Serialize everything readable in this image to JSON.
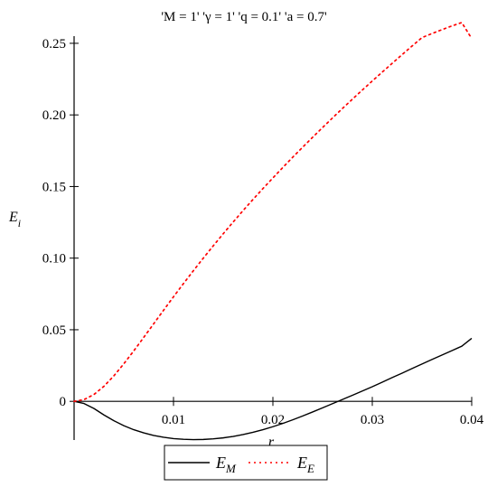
{
  "chart_data": {
    "type": "line",
    "title": "'M = 1' 'γ = 1' 'q = 0.1' 'a = 0.7'",
    "xlabel": "r",
    "ylabel": {
      "main": "E",
      "sub": "i"
    },
    "xlim": [
      0,
      0.04
    ],
    "ylim": [
      -0.027,
      0.255
    ],
    "x_ticks": [
      0.01,
      0.02,
      0.03,
      0.04
    ],
    "x_tick_labels": [
      "0.01",
      "0.02",
      "0.03",
      "0.04"
    ],
    "y_ticks": [
      0,
      0.05,
      0.1,
      0.15,
      0.2,
      0.25
    ],
    "y_tick_labels": [
      "0",
      "0.05",
      "0.10",
      "0.15",
      "0.20",
      "0.25"
    ],
    "grid": false,
    "legend_position": "bottom",
    "series": [
      {
        "name": {
          "main": "E",
          "sub": "M"
        },
        "color": "#000000",
        "style": "solid",
        "x": [
          0,
          0.001,
          0.002,
          0.003,
          0.004,
          0.005,
          0.006,
          0.007,
          0.008,
          0.009,
          0.01,
          0.011,
          0.012,
          0.013,
          0.014,
          0.015,
          0.016,
          0.017,
          0.018,
          0.019,
          0.02,
          0.021,
          0.022,
          0.023,
          0.024,
          0.025,
          0.026,
          0.027,
          0.028,
          0.029,
          0.03,
          0.031,
          0.032,
          0.033,
          0.034,
          0.035,
          0.036,
          0.037,
          0.038,
          0.039,
          0.04
        ],
        "y": [
          0,
          -0.0015,
          -0.005,
          -0.0095,
          -0.0135,
          -0.017,
          -0.0198,
          -0.022,
          -0.0238,
          -0.0251,
          -0.026,
          -0.0265,
          -0.0267,
          -0.0266,
          -0.0262,
          -0.0255,
          -0.0245,
          -0.0232,
          -0.0216,
          -0.0198,
          -0.0177,
          -0.0154,
          -0.0129,
          -0.0102,
          -0.0074,
          -0.0045,
          -0.0016,
          0.0013,
          0.0042,
          0.0072,
          0.0102,
          0.0134,
          0.0166,
          0.0197,
          0.0229,
          0.0261,
          0.0292,
          0.0323,
          0.0354,
          0.0385,
          0.044
        ]
      },
      {
        "name": {
          "main": "E",
          "sub": "E"
        },
        "color": "#ff0000",
        "style": "dotted",
        "x": [
          0,
          0.001,
          0.002,
          0.003,
          0.004,
          0.005,
          0.006,
          0.007,
          0.008,
          0.009,
          0.01,
          0.011,
          0.012,
          0.013,
          0.014,
          0.015,
          0.016,
          0.017,
          0.018,
          0.019,
          0.02,
          0.021,
          0.022,
          0.023,
          0.024,
          0.025,
          0.026,
          0.027,
          0.028,
          0.029,
          0.03,
          0.031,
          0.032,
          0.033,
          0.034,
          0.035,
          0.036,
          0.037,
          0.038,
          0.039,
          0.04
        ],
        "y": [
          0,
          0.0012,
          0.0048,
          0.0105,
          0.0178,
          0.0262,
          0.0352,
          0.0446,
          0.0541,
          0.0636,
          0.073,
          0.0822,
          0.0912,
          0.1,
          0.1086,
          0.117,
          0.1252,
          0.1332,
          0.141,
          0.1486,
          0.156,
          0.1633,
          0.1705,
          0.1775,
          0.1844,
          0.1912,
          0.1979,
          0.2045,
          0.211,
          0.2174,
          0.2237,
          0.2299,
          0.236,
          0.2421,
          0.2481,
          0.254,
          0.2568,
          0.2595,
          0.2621,
          0.2645,
          0.2533
        ]
      }
    ]
  }
}
